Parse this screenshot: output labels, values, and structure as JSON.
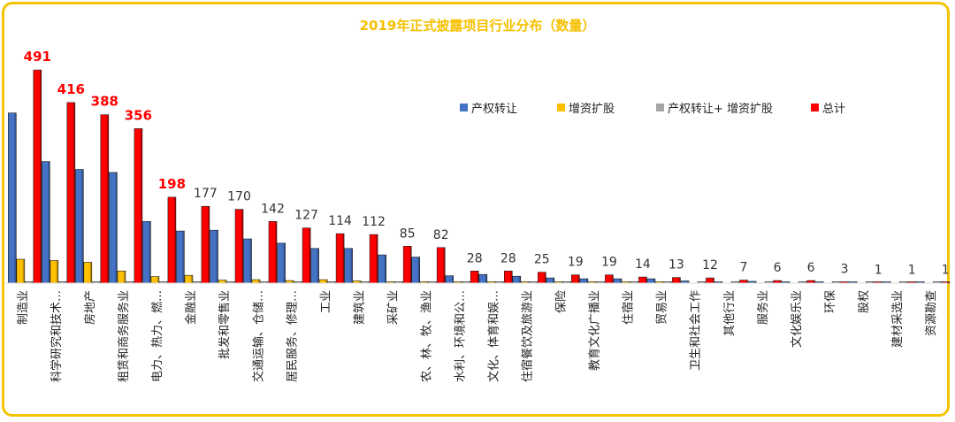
{
  "chart_data": {
    "type": "bar",
    "title": "2019年正式披露项目行业分布（数量）",
    "categories": [
      "制造业",
      "科学研究和技术…",
      "房地产",
      "租赁和商务服务业",
      "电力、热力、燃…",
      "金融业",
      "批发和零售业",
      "交通运输、仓储…",
      "居民服务、修理…",
      "工业",
      "建筑业",
      "采矿业",
      "农、林、牧、渔业",
      "水利、环境和公…",
      "文化、体育和娱…",
      "住宿餐饮及旅游业",
      "保险",
      "教育文化广播业",
      "住宿业",
      "贸易业",
      "卫生和社会工作",
      "其他行业",
      "服务业",
      "文化娱乐业",
      "环保",
      "股权",
      "建材采选业",
      "资源勘查"
    ],
    "series": [
      {
        "name": "产权转让",
        "color": "#4472c4",
        "values": [
          392,
          280,
          262,
          255,
          142,
          120,
          122,
          102,
          92,
          80,
          80,
          65,
          60,
          17,
          20,
          16,
          12,
          10,
          10,
          10,
          5,
          3,
          4,
          3,
          2,
          1,
          1,
          1
        ]
      },
      {
        "name": "增资扩股",
        "color": "#ffc000",
        "values": [
          55,
          52,
          48,
          28,
          15,
          18,
          7,
          8,
          6,
          8,
          5,
          3,
          2,
          2,
          2,
          2,
          1,
          1,
          1,
          1,
          0,
          0,
          0,
          0,
          0,
          0,
          0,
          0
        ]
      },
      {
        "name": "产权转让+ 增资扩股",
        "color": "#a5a5a5",
        "values": [
          2,
          2,
          1,
          1,
          1,
          1,
          1,
          1,
          1,
          1,
          1,
          1,
          1,
          1,
          1,
          1,
          1,
          1,
          1,
          1,
          1,
          1,
          1,
          1,
          1,
          1,
          1,
          1
        ]
      },
      {
        "name": "总计",
        "color": "#ff0000",
        "values": [
          491,
          416,
          388,
          356,
          198,
          177,
          170,
          142,
          127,
          114,
          112,
          85,
          82,
          28,
          28,
          25,
          19,
          19,
          14,
          13,
          12,
          7,
          6,
          6,
          3,
          1,
          1,
          1
        ]
      }
    ],
    "data_labels": [
      "491",
      "416",
      "388",
      "356",
      "198",
      "177",
      "170",
      "142",
      "127",
      "114",
      "112",
      "85",
      "82",
      "28",
      "28",
      "25",
      "19",
      "19",
      "14",
      "13",
      "12",
      "7",
      "6",
      "6",
      "3",
      "1",
      "1",
      "1"
    ],
    "highlight_label_color": "#ff0000",
    "highlight_count": 5,
    "ylim": [
      0,
      500
    ],
    "xlabel": "",
    "ylabel": "",
    "grid": false,
    "legend_position": "right",
    "frame_color": "#f5c400",
    "title_color": "#f5c000"
  }
}
